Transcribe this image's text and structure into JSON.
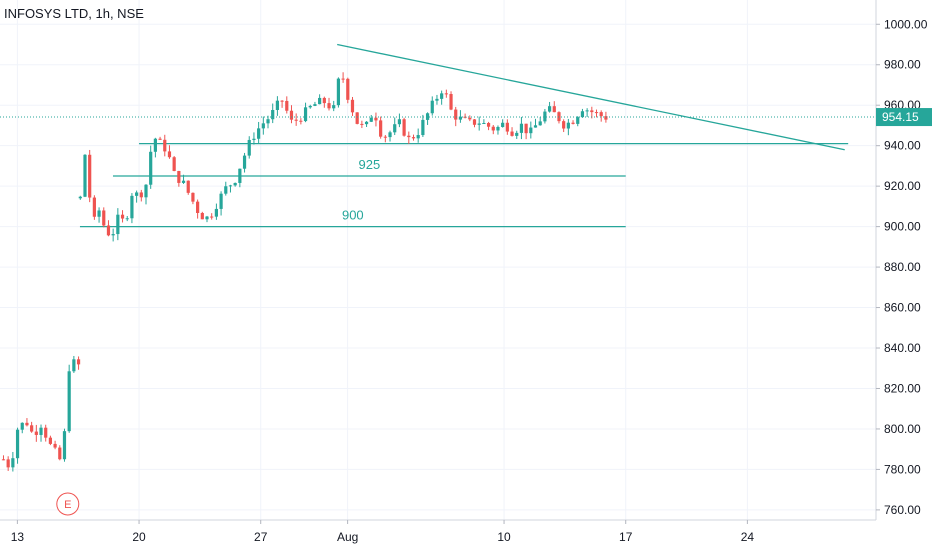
{
  "header": {
    "title": "INFOSYS LTD, 1h, NSE"
  },
  "colors": {
    "up": "#26a69a",
    "down": "#ef5350",
    "line": "#26a69a",
    "grid": "#f0f3fa",
    "axis_text": "#131722",
    "event": "#ef5350"
  },
  "chart_data": {
    "type": "candlestick",
    "title": "INFOSYS LTD, 1h, NSE",
    "ylim": [
      755,
      1012
    ],
    "y_ticks": [
      "1000.00",
      "980.00",
      "960.00",
      "940.00",
      "920.00",
      "900.00",
      "880.00",
      "860.00",
      "840.00",
      "820.00",
      "800.00",
      "780.00",
      "760.00"
    ],
    "x_ticks": [
      {
        "label": "13",
        "day": 13
      },
      {
        "label": "20",
        "day": 20
      },
      {
        "label": "27",
        "day": 27
      },
      {
        "label": "Aug",
        "day": 32
      },
      {
        "label": "10",
        "day": 41
      },
      {
        "label": "17",
        "day": 48
      },
      {
        "label": "24",
        "day": 55
      }
    ],
    "last_price": {
      "label": "954.15",
      "value": 954.15
    },
    "levels": [
      {
        "value": 941,
        "label": "",
        "from_day": 20.0,
        "to_day": 60.8
      },
      {
        "value": 925,
        "label": "925",
        "from_day": 18.5,
        "to_day": 48.0
      },
      {
        "value": 900,
        "label": "900",
        "from_day": 16.6,
        "to_day": 48.0
      }
    ],
    "trendline": {
      "from": {
        "day": 31.4,
        "value": 990
      },
      "to": {
        "day": 60.6,
        "value": 938
      }
    },
    "event_marker": {
      "label": "E",
      "day": 15.9
    },
    "price_path": [
      {
        "day": 12.2,
        "value": 785
      },
      {
        "day": 12.6,
        "value": 781
      },
      {
        "day": 13.0,
        "value": 800
      },
      {
        "day": 13.5,
        "value": 804
      },
      {
        "day": 13.9,
        "value": 797
      },
      {
        "day": 14.4,
        "value": 803
      },
      {
        "day": 14.8,
        "value": 793
      },
      {
        "day": 15.2,
        "value": 788
      },
      {
        "day": 15.5,
        "value": 784
      },
      {
        "day": 15.7,
        "value": 796
      },
      {
        "day": 15.9,
        "value": 827
      },
      {
        "day": 16.1,
        "value": 836
      },
      {
        "day": 16.4,
        "value": 829
      },
      {
        "day": 16.6,
        "value": 833
      },
      {
        "day": 16.6,
        "value": 905
      },
      {
        "day": 16.7,
        "value": 950
      },
      {
        "day": 16.9,
        "value": 935
      },
      {
        "day": 17.1,
        "value": 918
      },
      {
        "day": 17.4,
        "value": 902
      },
      {
        "day": 17.7,
        "value": 908
      },
      {
        "day": 18.0,
        "value": 900
      },
      {
        "day": 18.4,
        "value": 895
      },
      {
        "day": 18.8,
        "value": 904
      },
      {
        "day": 19.2,
        "value": 902
      },
      {
        "day": 19.6,
        "value": 917
      },
      {
        "day": 20.0,
        "value": 915
      },
      {
        "day": 20.4,
        "value": 921
      },
      {
        "day": 20.8,
        "value": 945
      },
      {
        "day": 21.2,
        "value": 941
      },
      {
        "day": 21.6,
        "value": 938
      },
      {
        "day": 22.0,
        "value": 926
      },
      {
        "day": 22.5,
        "value": 922
      },
      {
        "day": 23.0,
        "value": 914
      },
      {
        "day": 23.5,
        "value": 906
      },
      {
        "day": 24.0,
        "value": 904
      },
      {
        "day": 24.5,
        "value": 912
      },
      {
        "day": 25.0,
        "value": 919
      },
      {
        "day": 25.5,
        "value": 923
      },
      {
        "day": 26.0,
        "value": 934
      },
      {
        "day": 26.5,
        "value": 944
      },
      {
        "day": 27.0,
        "value": 950
      },
      {
        "day": 27.6,
        "value": 955
      },
      {
        "day": 28.2,
        "value": 963
      },
      {
        "day": 28.8,
        "value": 951
      },
      {
        "day": 29.4,
        "value": 955
      },
      {
        "day": 30.0,
        "value": 960
      },
      {
        "day": 30.6,
        "value": 962
      },
      {
        "day": 31.2,
        "value": 958
      },
      {
        "day": 31.6,
        "value": 978
      },
      {
        "day": 32.0,
        "value": 965
      },
      {
        "day": 32.5,
        "value": 952
      },
      {
        "day": 33.0,
        "value": 948
      },
      {
        "day": 33.5,
        "value": 958
      },
      {
        "day": 34.0,
        "value": 944
      },
      {
        "day": 34.5,
        "value": 947
      },
      {
        "day": 35.0,
        "value": 951
      },
      {
        "day": 35.5,
        "value": 943
      },
      {
        "day": 36.0,
        "value": 946
      },
      {
        "day": 36.5,
        "value": 954
      },
      {
        "day": 37.0,
        "value": 962
      },
      {
        "day": 37.5,
        "value": 969
      },
      {
        "day": 38.0,
        "value": 956
      },
      {
        "day": 38.5,
        "value": 953
      },
      {
        "day": 39.0,
        "value": 951
      },
      {
        "day": 39.5,
        "value": 952
      },
      {
        "day": 40.0,
        "value": 950
      },
      {
        "day": 40.5,
        "value": 948
      },
      {
        "day": 41.0,
        "value": 951
      },
      {
        "day": 41.5,
        "value": 947
      },
      {
        "day": 42.0,
        "value": 950
      },
      {
        "day": 42.5,
        "value": 946
      },
      {
        "day": 43.0,
        "value": 952
      },
      {
        "day": 43.5,
        "value": 958
      },
      {
        "day": 44.0,
        "value": 955
      },
      {
        "day": 44.5,
        "value": 950
      },
      {
        "day": 45.0,
        "value": 953
      },
      {
        "day": 45.5,
        "value": 959
      },
      {
        "day": 46.0,
        "value": 957
      },
      {
        "day": 46.5,
        "value": 955
      },
      {
        "day": 46.9,
        "value": 954
      }
    ]
  }
}
